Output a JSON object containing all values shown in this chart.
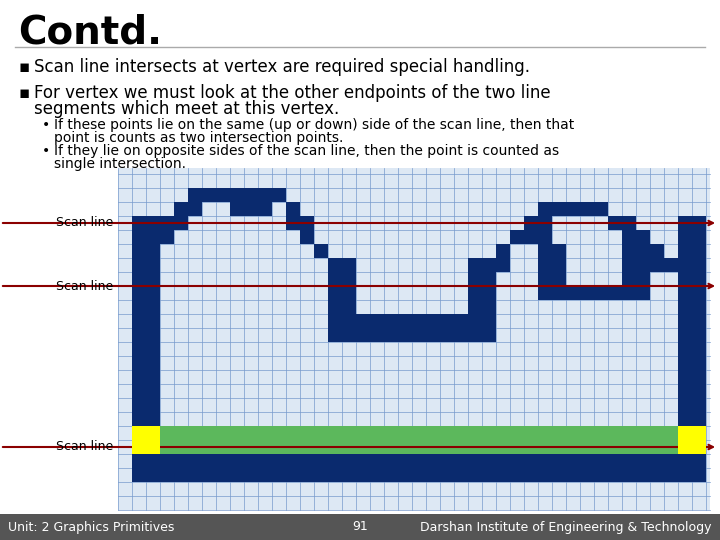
{
  "title": "Contd.",
  "bullet1": "Scan line intersects at vertex are required special handling.",
  "bullet2a": "For vertex we must look at the other endpoints of the two line",
  "bullet2b": "segments which meet at this vertex.",
  "sub1a": "If these points lie on the same (up or down) side of the scan line, then that",
  "sub1b": "point is counts as two intersection points.",
  "sub2a": "If they lie on opposite sides of the scan line, then the point is counted as",
  "sub2b": "single intersection.",
  "sl_label": "Scan line",
  "footer_left": "Unit: 2 Graphics Primitives",
  "footer_center": "91",
  "footer_right": "Darshan Institute of Engineering & Technology",
  "bg_color": "#ffffff",
  "footer_bg": "#555555",
  "grid_line_color": "#7799cc",
  "grid_bg": "#dde8f4",
  "navy": "#0a2a6e",
  "scan_color": "#8B0000",
  "green_fill": "#5cb85c",
  "yellow": "#ffff00",
  "title_fontsize": 28,
  "body_fontsize": 12,
  "sub_fontsize": 10,
  "footer_fontsize": 9
}
